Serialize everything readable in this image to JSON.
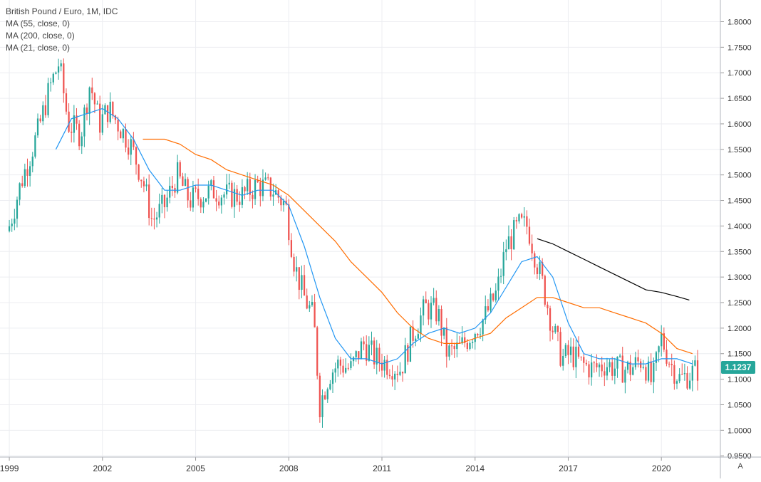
{
  "legend": {
    "title": "British Pound / Euro, 1M, IDC",
    "ma1": "MA (55, close, 0)",
    "ma2": "MA (200, close, 0)",
    "ma3": "MA (21, close, 0)"
  },
  "last_price": "1.1237",
  "scale_mode_label": "A",
  "colors": {
    "up": "#26a69a",
    "down": "#ef5350",
    "ma21": "#2196f3",
    "ma55": "#ff6d00",
    "ma200": "#000000",
    "grid": "#ecedf1",
    "axis_text": "#333333"
  },
  "chart_data": {
    "type": "candlestick",
    "title": "British Pound / Euro, 1M, IDC",
    "xlabel": "",
    "ylabel": "",
    "x_range": [
      1998.7,
      2021.9
    ],
    "ylim": [
      0.9475,
      1.8425
    ],
    "x_ticks": [
      {
        "value": 1999,
        "label": "1999"
      },
      {
        "value": 2002,
        "label": "2002"
      },
      {
        "value": 2005,
        "label": "2005"
      },
      {
        "value": 2008,
        "label": "2008"
      },
      {
        "value": 2011,
        "label": "2011"
      },
      {
        "value": 2014,
        "label": "2014"
      },
      {
        "value": 2017,
        "label": "2017"
      },
      {
        "value": 2020,
        "label": "2020"
      }
    ],
    "y_ticks": [
      "0.9500",
      "1.0000",
      "1.0500",
      "1.1000",
      "1.1500",
      "1.2000",
      "1.2500",
      "1.3000",
      "1.3500",
      "1.4000",
      "1.4500",
      "1.5000",
      "1.5500",
      "1.6000",
      "1.6500",
      "1.7000",
      "1.7500",
      "1.8000"
    ],
    "grid": true,
    "close_path": [
      [
        1999.0,
        1.4
      ],
      [
        1999.4,
        1.49
      ],
      [
        1999.9,
        1.58
      ],
      [
        2000.3,
        1.67
      ],
      [
        2000.6,
        1.72
      ],
      [
        2000.9,
        1.6
      ],
      [
        2001.3,
        1.58
      ],
      [
        2001.6,
        1.68
      ],
      [
        2001.9,
        1.6
      ],
      [
        2002.2,
        1.63
      ],
      [
        2002.5,
        1.6
      ],
      [
        2002.9,
        1.56
      ],
      [
        2003.3,
        1.49
      ],
      [
        2003.6,
        1.41
      ],
      [
        2004.0,
        1.44
      ],
      [
        2004.4,
        1.5
      ],
      [
        2004.8,
        1.45
      ],
      [
        2005.2,
        1.46
      ],
      [
        2005.6,
        1.47
      ],
      [
        2006.0,
        1.46
      ],
      [
        2006.5,
        1.46
      ],
      [
        2007.0,
        1.48
      ],
      [
        2007.5,
        1.47
      ],
      [
        2007.9,
        1.44
      ],
      [
        2008.2,
        1.32
      ],
      [
        2008.5,
        1.26
      ],
      [
        2008.8,
        1.22
      ],
      [
        2009.0,
        1.05
      ],
      [
        2009.3,
        1.11
      ],
      [
        2009.6,
        1.13
      ],
      [
        2010.0,
        1.12
      ],
      [
        2010.4,
        1.17
      ],
      [
        2010.8,
        1.14
      ],
      [
        2011.2,
        1.13
      ],
      [
        2011.6,
        1.12
      ],
      [
        2012.0,
        1.19
      ],
      [
        2012.4,
        1.24
      ],
      [
        2012.8,
        1.23
      ],
      [
        2013.1,
        1.15
      ],
      [
        2013.5,
        1.16
      ],
      [
        2013.9,
        1.19
      ],
      [
        2014.3,
        1.22
      ],
      [
        2014.7,
        1.27
      ],
      [
        2015.0,
        1.36
      ],
      [
        2015.4,
        1.4
      ],
      [
        2015.7,
        1.4
      ],
      [
        2015.9,
        1.35
      ],
      [
        2016.2,
        1.28
      ],
      [
        2016.5,
        1.2
      ],
      [
        2016.8,
        1.14
      ],
      [
        2017.1,
        1.15
      ],
      [
        2017.4,
        1.13
      ],
      [
        2017.8,
        1.12
      ],
      [
        2018.2,
        1.13
      ],
      [
        2018.6,
        1.12
      ],
      [
        2019.0,
        1.12
      ],
      [
        2019.4,
        1.14
      ],
      [
        2019.7,
        1.09
      ],
      [
        2020.0,
        1.18
      ],
      [
        2020.3,
        1.13
      ],
      [
        2020.6,
        1.1
      ],
      [
        2020.9,
        1.11
      ],
      [
        2021.2,
        1.12
      ]
    ],
    "series": [
      {
        "name": "MA (21, close, 0)",
        "points": [
          [
            2000.5,
            1.55
          ],
          [
            2001.0,
            1.61
          ],
          [
            2001.5,
            1.62
          ],
          [
            2002.0,
            1.63
          ],
          [
            2002.5,
            1.61
          ],
          [
            2003.0,
            1.57
          ],
          [
            2003.5,
            1.51
          ],
          [
            2004.0,
            1.47
          ],
          [
            2004.5,
            1.47
          ],
          [
            2005.0,
            1.48
          ],
          [
            2005.5,
            1.48
          ],
          [
            2006.0,
            1.47
          ],
          [
            2006.5,
            1.46
          ],
          [
            2007.0,
            1.47
          ],
          [
            2007.5,
            1.47
          ],
          [
            2008.0,
            1.44
          ],
          [
            2008.5,
            1.36
          ],
          [
            2009.0,
            1.26
          ],
          [
            2009.5,
            1.18
          ],
          [
            2010.0,
            1.14
          ],
          [
            2010.5,
            1.14
          ],
          [
            2011.0,
            1.13
          ],
          [
            2011.5,
            1.14
          ],
          [
            2012.0,
            1.17
          ],
          [
            2012.5,
            1.19
          ],
          [
            2013.0,
            1.2
          ],
          [
            2013.5,
            1.19
          ],
          [
            2014.0,
            1.2
          ],
          [
            2014.5,
            1.23
          ],
          [
            2015.0,
            1.28
          ],
          [
            2015.5,
            1.33
          ],
          [
            2016.0,
            1.34
          ],
          [
            2016.5,
            1.3
          ],
          [
            2017.0,
            1.21
          ],
          [
            2017.5,
            1.15
          ],
          [
            2018.0,
            1.14
          ],
          [
            2018.5,
            1.14
          ],
          [
            2019.0,
            1.13
          ],
          [
            2019.5,
            1.13
          ],
          [
            2020.0,
            1.14
          ],
          [
            2020.5,
            1.14
          ],
          [
            2021.0,
            1.13
          ]
        ]
      },
      {
        "name": "MA (55, close, 0)",
        "points": [
          [
            2003.3,
            1.57
          ],
          [
            2004.0,
            1.57
          ],
          [
            2004.5,
            1.56
          ],
          [
            2005.0,
            1.54
          ],
          [
            2005.5,
            1.53
          ],
          [
            2006.0,
            1.51
          ],
          [
            2006.5,
            1.5
          ],
          [
            2007.0,
            1.49
          ],
          [
            2007.5,
            1.48
          ],
          [
            2008.0,
            1.46
          ],
          [
            2008.5,
            1.43
          ],
          [
            2009.0,
            1.4
          ],
          [
            2009.5,
            1.37
          ],
          [
            2010.0,
            1.33
          ],
          [
            2010.5,
            1.3
          ],
          [
            2011.0,
            1.27
          ],
          [
            2011.5,
            1.23
          ],
          [
            2012.0,
            1.2
          ],
          [
            2012.5,
            1.18
          ],
          [
            2013.0,
            1.17
          ],
          [
            2013.5,
            1.17
          ],
          [
            2014.0,
            1.18
          ],
          [
            2014.5,
            1.19
          ],
          [
            2015.0,
            1.22
          ],
          [
            2015.5,
            1.24
          ],
          [
            2016.0,
            1.26
          ],
          [
            2016.5,
            1.26
          ],
          [
            2017.0,
            1.25
          ],
          [
            2017.5,
            1.24
          ],
          [
            2018.0,
            1.24
          ],
          [
            2018.5,
            1.23
          ],
          [
            2019.0,
            1.22
          ],
          [
            2019.5,
            1.21
          ],
          [
            2020.0,
            1.19
          ],
          [
            2020.5,
            1.16
          ],
          [
            2021.0,
            1.15
          ]
        ]
      },
      {
        "name": "MA (200, close, 0)",
        "points": [
          [
            2016.0,
            1.375
          ],
          [
            2016.5,
            1.365
          ],
          [
            2017.0,
            1.35
          ],
          [
            2017.5,
            1.335
          ],
          [
            2018.0,
            1.32
          ],
          [
            2018.5,
            1.305
          ],
          [
            2019.0,
            1.29
          ],
          [
            2019.5,
            1.275
          ],
          [
            2020.0,
            1.27
          ],
          [
            2020.5,
            1.262
          ],
          [
            2020.9,
            1.255
          ]
        ]
      }
    ]
  }
}
